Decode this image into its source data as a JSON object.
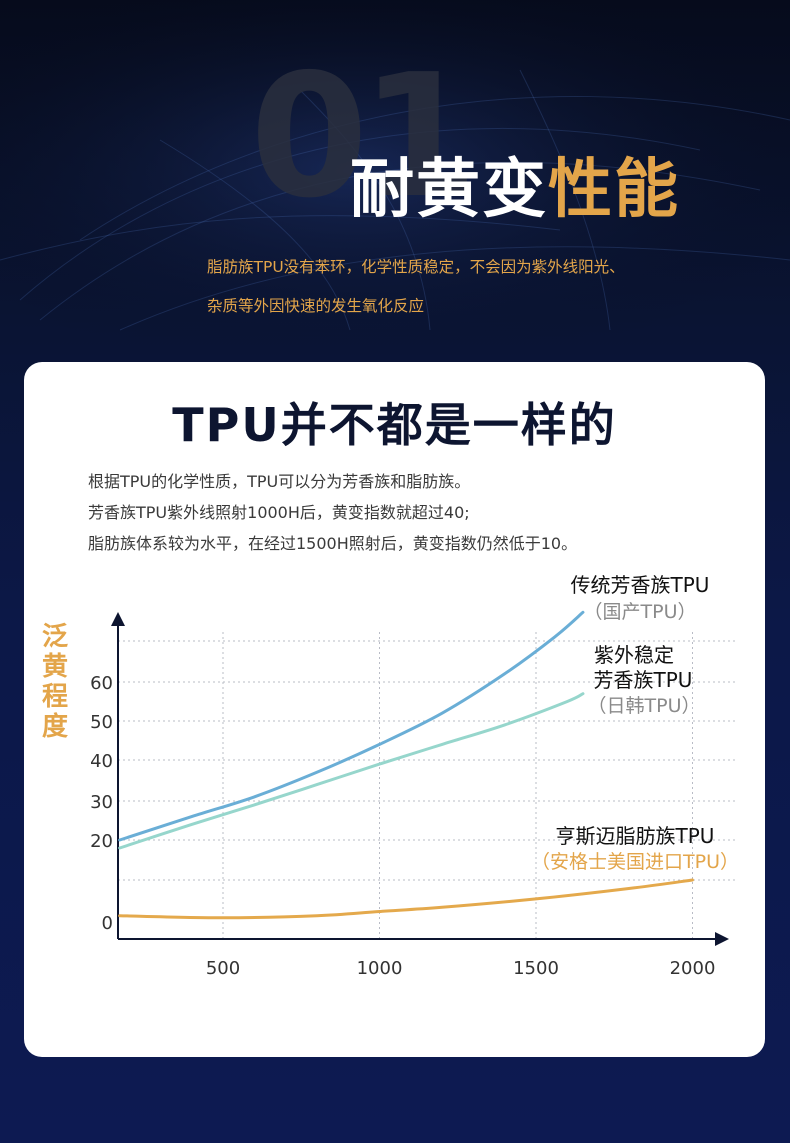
{
  "hero": {
    "number": "01",
    "title_white": "耐黄变",
    "title_gold": "性能",
    "desc_lines": [
      "脂肪族TPU没有苯环，化学性质稳定，不会因为紫外线阳光、",
      "杂质等外因快速的发生氧化反应"
    ]
  },
  "card": {
    "title": "TPU并不都是一样的",
    "desc_lines": [
      "根据TPU的化学性质，TPU可以分为芳香族和脂肪族。",
      "芳香族TPU紫外线照射1000H后，黄变指数就超过40;",
      "脂肪族体系较为水平，在经过1500H照射后，黄变指数仍然低于10。"
    ]
  },
  "colors": {
    "gold": "#e3a54a",
    "series_blue": "#6aaed6",
    "series_teal": "#96d6cc",
    "series_orange": "#e4a94c",
    "axis": "#0d1530"
  },
  "chart_data": {
    "type": "line",
    "ylabel": "泛黄程度",
    "xlabel": "",
    "x_ticks": [
      500,
      1000,
      1500,
      2000
    ],
    "y_ticks": [
      0,
      20,
      30,
      40,
      50,
      60
    ],
    "xlim": [
      170,
      2000
    ],
    "series": [
      {
        "name": "传统芳香族TPU",
        "subname": "（国产TPU）",
        "color": "#6aaed6",
        "x": [
          170,
          400,
          600,
          800,
          1000,
          1200,
          1400,
          1560,
          1650
        ],
        "y": [
          20,
          26,
          31,
          37,
          44,
          52,
          62,
          71,
          77
        ]
      },
      {
        "name": "紫外稳定芳香族TPU",
        "name_lines": [
          "紫外稳定",
          "芳香族TPU"
        ],
        "subname": "（日韩TPU）",
        "color": "#96d6cc",
        "x": [
          170,
          400,
          600,
          800,
          1000,
          1200,
          1400,
          1600,
          1650
        ],
        "y": [
          18,
          24,
          29,
          34,
          39,
          44,
          49,
          55,
          57
        ]
      },
      {
        "name": "亨斯迈脂肪族TPU",
        "subname": "（安格士美国进口TPU）",
        "color": "#e4a94c",
        "x": [
          170,
          500,
          800,
          1000,
          1200,
          1500,
          1800,
          2000
        ],
        "y": [
          1.5,
          1.0,
          1.5,
          2.5,
          3.5,
          5.5,
          8,
          10
        ]
      }
    ]
  }
}
